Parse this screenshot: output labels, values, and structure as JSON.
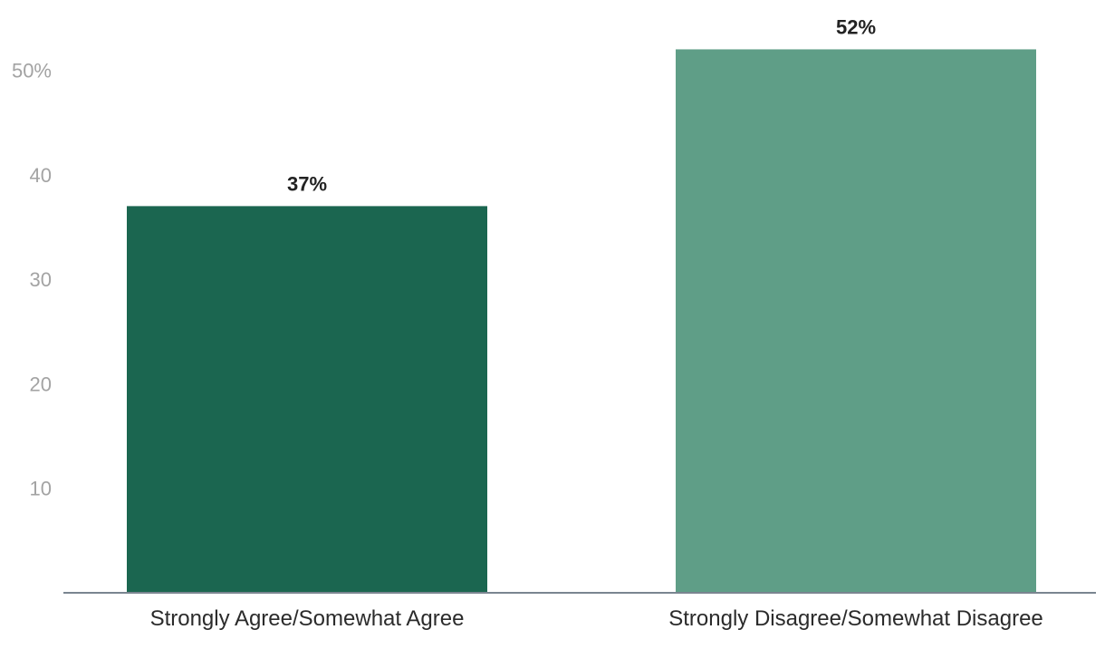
{
  "chart_data": {
    "type": "bar",
    "categories": [
      "Strongly Agree/Somewhat Agree",
      "Strongly Disagree/Somewhat Disagree"
    ],
    "values": [
      37,
      52
    ],
    "data_labels": [
      "37%",
      "52%"
    ],
    "bar_colors": [
      "#1b6650",
      "#5f9e87"
    ],
    "ylim": [
      0,
      55
    ],
    "yticks": [
      10,
      20,
      30,
      40,
      50
    ],
    "ytick_labels": [
      "10",
      "20",
      "30",
      "40",
      "50%"
    ],
    "grid": false,
    "legend": "none"
  }
}
